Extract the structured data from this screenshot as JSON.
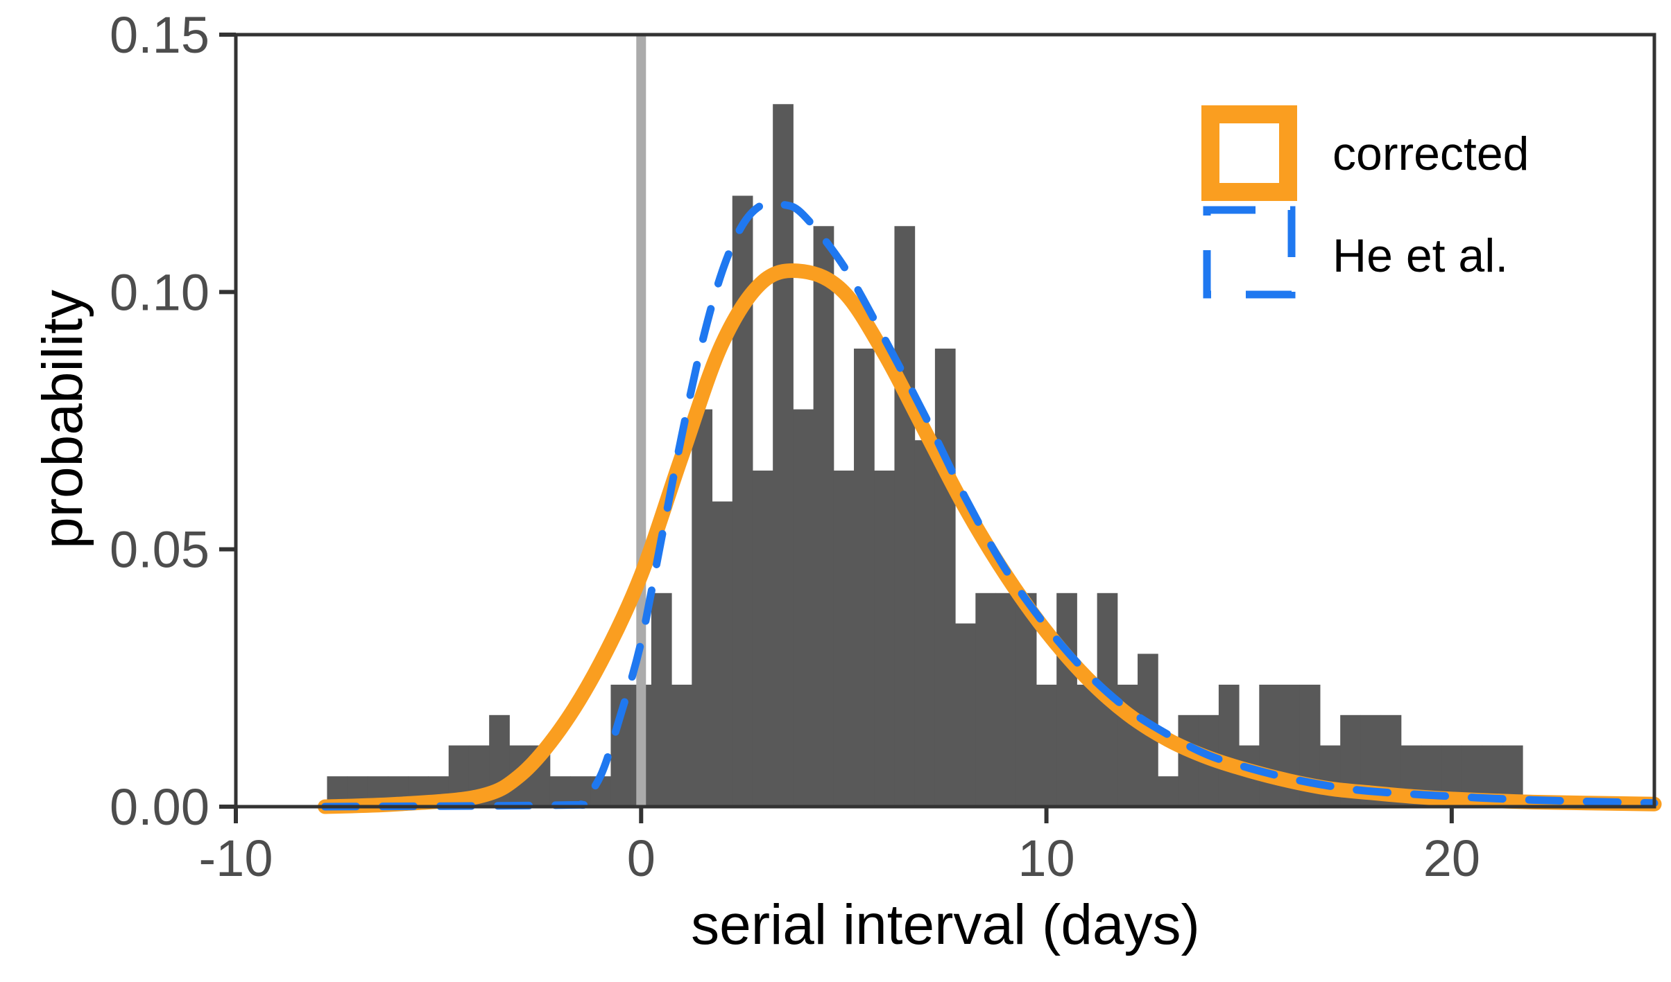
{
  "chart_data": {
    "type": "bar",
    "title": "",
    "xlabel": "serial interval (days)",
    "ylabel": "probability",
    "xlim": [
      -10,
      25
    ],
    "ylim": [
      0,
      0.15
    ],
    "x_ticks": [
      "-10",
      "0",
      "10",
      "20"
    ],
    "x_tick_values": [
      -10,
      0,
      10,
      20
    ],
    "y_ticks": [
      "0.00",
      "0.05",
      "0.10",
      "0.15"
    ],
    "y_tick_values": [
      0,
      0.05,
      0.1,
      0.15
    ],
    "grid": false,
    "reference_line_x": 0,
    "histogram": {
      "bin_width": 0.5,
      "first_bin_start": -7.75,
      "values": [
        0.0059,
        0.0059,
        0.0059,
        0.0059,
        0.0059,
        0.0059,
        0.0119,
        0.0119,
        0.0178,
        0.0119,
        0.0119,
        0.0059,
        0.0059,
        0.0059,
        0.0237,
        0.0237,
        0.0415,
        0.0237,
        0.0772,
        0.0593,
        0.1187,
        0.0653,
        0.1365,
        0.0772,
        0.1128,
        0.0653,
        0.089,
        0.0653,
        0.1128,
        0.0712,
        0.089,
        0.0356,
        0.0415,
        0.0415,
        0.0415,
        0.0237,
        0.0415,
        0.0237,
        0.0415,
        0.0237,
        0.0297,
        0.0059,
        0.0178,
        0.0178,
        0.0237,
        0.0119,
        0.0237,
        0.0237,
        0.0237,
        0.0119,
        0.0178,
        0.0178,
        0.0178,
        0.0119,
        0.0119,
        0.0119,
        0.0119,
        0.0119,
        0.0119
      ]
    },
    "series": [
      {
        "name": "corrected",
        "color": "#FA9E20",
        "style": "solid",
        "x": [
          -7.8,
          -6,
          -4,
          -3,
          -2,
          -1,
          0,
          1,
          2,
          3,
          4,
          5,
          6,
          7,
          8,
          9,
          10,
          11,
          12,
          13,
          14,
          15,
          16,
          17,
          18,
          19,
          20,
          22,
          25
        ],
        "y": [
          0,
          0.0005,
          0.002,
          0.006,
          0.015,
          0.028,
          0.045,
          0.068,
          0.09,
          0.102,
          0.104,
          0.1,
          0.088,
          0.073,
          0.058,
          0.045,
          0.034,
          0.025,
          0.018,
          0.013,
          0.0095,
          0.007,
          0.005,
          0.0035,
          0.0027,
          0.002,
          0.0015,
          0.0009,
          0.0005
        ]
      },
      {
        "name": "He et al.",
        "color": "#1F78F0",
        "style": "dashed",
        "x": [
          -7.8,
          -2,
          -1.5,
          -1,
          -0.5,
          0,
          0.5,
          1,
          1.5,
          2,
          2.5,
          3,
          3.5,
          4,
          5,
          6,
          7,
          8,
          9,
          10,
          11,
          12,
          13,
          14,
          15,
          16,
          17,
          18,
          20,
          22,
          25
        ],
        "y": [
          0,
          0.0003,
          0.001,
          0.006,
          0.018,
          0.032,
          0.052,
          0.072,
          0.09,
          0.104,
          0.113,
          0.117,
          0.117,
          0.115,
          0.105,
          0.091,
          0.076,
          0.06,
          0.046,
          0.035,
          0.026,
          0.019,
          0.014,
          0.01,
          0.0075,
          0.0055,
          0.004,
          0.003,
          0.002,
          0.0013,
          0.0007
        ]
      }
    ],
    "legend": {
      "placement": "top-right",
      "entries": [
        "corrected",
        "He et al."
      ]
    },
    "colors": {
      "bars": "#595959",
      "reference_line": "#ababab",
      "axis": "#333333"
    }
  }
}
